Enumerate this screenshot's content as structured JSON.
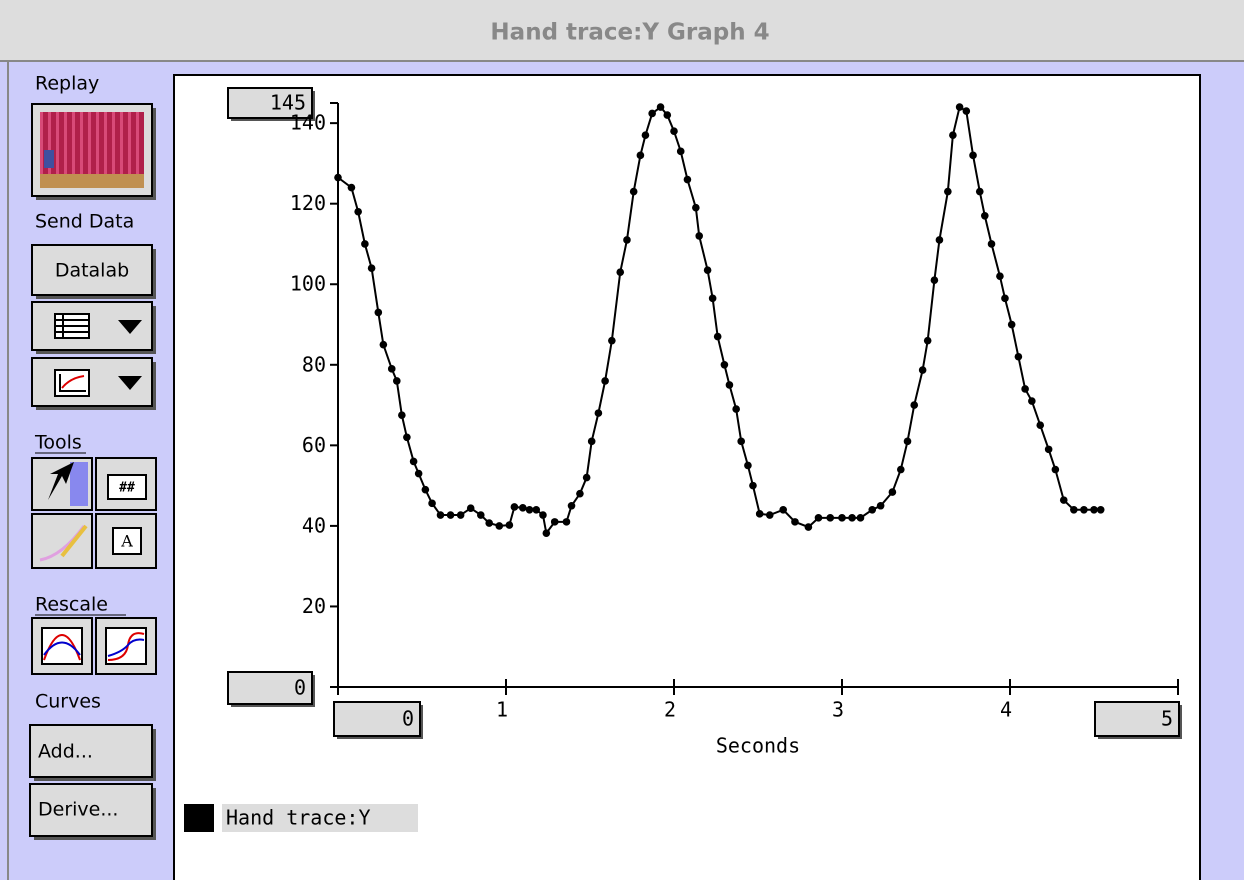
{
  "window": {
    "title": "Hand trace:Y Graph 4"
  },
  "sidebar": {
    "replay_label": "Replay",
    "send_data_label": "Send Data",
    "datalab_button": "Datalab",
    "tools_label": "Tools",
    "tool_icon_labels": [
      "##",
      "A"
    ],
    "rescale_label": "Rescale",
    "curves_label": "Curves",
    "add_button": "Add...",
    "derive_button": "Derive..."
  },
  "chart_data": {
    "type": "line",
    "x_label": "Seconds",
    "x": [
      0,
      0.08,
      0.12,
      0.16,
      0.2,
      0.24,
      0.27,
      0.32,
      0.35,
      0.38,
      0.41,
      0.45,
      0.48,
      0.52,
      0.56,
      0.61,
      0.67,
      0.73,
      0.79,
      0.85,
      0.9,
      0.96,
      1.02,
      1.05,
      1.1,
      1.14,
      1.18,
      1.22,
      1.24,
      1.29,
      1.36,
      1.39,
      1.44,
      1.48,
      1.51,
      1.55,
      1.59,
      1.63,
      1.68,
      1.72,
      1.76,
      1.8,
      1.83,
      1.87,
      1.92,
      1.96,
      2.0,
      2.04,
      2.08,
      2.13,
      2.15,
      2.2,
      2.23,
      2.26,
      2.3,
      2.33,
      2.37,
      2.4,
      2.44,
      2.47,
      2.51,
      2.57,
      2.65,
      2.72,
      2.8,
      2.86,
      2.93,
      3.0,
      3.06,
      3.11,
      3.18,
      3.23,
      3.3,
      3.35,
      3.39,
      3.43,
      3.48,
      3.51,
      3.55,
      3.58,
      3.63,
      3.66,
      3.7,
      3.74,
      3.78,
      3.82,
      3.85,
      3.89,
      3.94,
      3.97,
      4.01,
      4.05,
      4.09,
      4.13,
      4.18,
      4.23,
      4.27,
      4.32,
      4.38,
      4.44,
      4.5,
      4.54
    ],
    "series": [
      {
        "name": "Hand trace:Y",
        "color": "#000000",
        "values": [
          126.5,
          124,
          118,
          110,
          104,
          93,
          85,
          79,
          76,
          67.5,
          62,
          56,
          53,
          49,
          45.6,
          42.7,
          42.7,
          42.7,
          44.4,
          42.7,
          40.7,
          40,
          40.2,
          44.7,
          44.5,
          44,
          44,
          42.7,
          38.2,
          41,
          41,
          45,
          48,
          52,
          61,
          68,
          76,
          86,
          103,
          111,
          123,
          132,
          137,
          142.4,
          144,
          142,
          138,
          133,
          126,
          119,
          112,
          103.5,
          96.5,
          87,
          80,
          75,
          69,
          61,
          55,
          50,
          43,
          42.7,
          44,
          41,
          39.7,
          42,
          42,
          42,
          42,
          42,
          44,
          45,
          48.4,
          54,
          61,
          70,
          78.7,
          86,
          101,
          111,
          123,
          137,
          144,
          143,
          132,
          123,
          117,
          110,
          102,
          96.5,
          90,
          82,
          74,
          71,
          65,
          59,
          54,
          46.4,
          44,
          44,
          44,
          44
        ]
      }
    ],
    "xlim": [
      0,
      5
    ],
    "xticks": [
      1,
      2,
      3,
      4
    ],
    "ylim": [
      0,
      145
    ],
    "yticks": [
      20,
      40,
      60,
      80,
      100,
      120,
      140
    ]
  }
}
